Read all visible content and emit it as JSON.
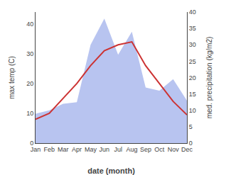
{
  "chart_data": {
    "type": "line",
    "categories": [
      "Jan",
      "Feb",
      "Mar",
      "Apr",
      "May",
      "Jun",
      "Jul",
      "Aug",
      "Sep",
      "Oct",
      "Nov",
      "Dec"
    ],
    "series": [
      {
        "type": "area",
        "color": "#b8c4f0",
        "axis": "y2",
        "values": [
          9.0,
          10.0,
          12.0,
          12.5,
          30.0,
          38.0,
          27.0,
          34.0,
          17.0,
          16.0,
          19.5,
          13.0
        ]
      },
      {
        "type": "line",
        "color": "#cc3333",
        "values": [
          8.0,
          10.0,
          15.0,
          20.0,
          26.0,
          31.0,
          33.0,
          34.0,
          26.0,
          20.0,
          14.0,
          9.5
        ]
      }
    ],
    "xlabel": "date (month)",
    "ylabel": "max temp (C)",
    "y2label": "med. precipitation (kg/m2)",
    "ylim": [
      0,
      44
    ],
    "yticks": [
      0,
      10,
      20,
      30,
      40
    ],
    "y2lim": [
      0,
      40
    ],
    "y2ticks": [
      0,
      5,
      10,
      15,
      20,
      25,
      30,
      35,
      40
    ],
    "grid": false
  }
}
